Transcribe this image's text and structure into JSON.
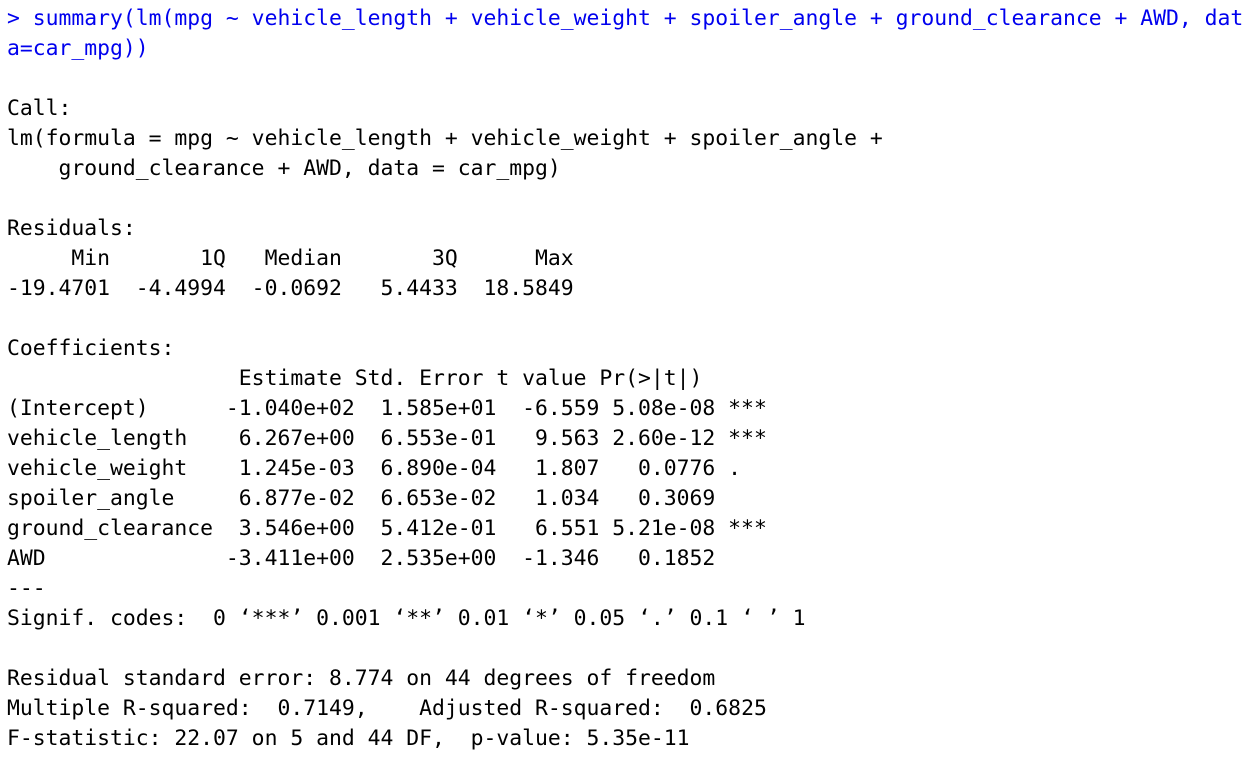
{
  "console": {
    "prompt": ">",
    "command_lines": [
      "> summary(lm(mpg ~ vehicle_length + vehicle_weight + spoiler_angle + ground_clearance + AWD, dat",
      "a=car_mpg))"
    ],
    "command_color": "#0000ee",
    "text_color": "#000000",
    "background": "#ffffff"
  },
  "call": {
    "header": "Call:",
    "lines": [
      "lm(formula = mpg ~ vehicle_length + vehicle_weight + spoiler_angle + ",
      "    ground_clearance + AWD, data = car_mpg)"
    ]
  },
  "residuals": {
    "header": "Residuals:",
    "columns_line": "     Min       1Q   Median       3Q      Max ",
    "values_line": "-19.4701  -4.4994  -0.0692   5.4433  18.5849 ",
    "columns": [
      "Min",
      "1Q",
      "Median",
      "3Q",
      "Max"
    ],
    "values": [
      "-19.4701",
      "-4.4994",
      "-0.0692",
      "5.4433",
      "18.5849"
    ]
  },
  "coefficients": {
    "header": "Coefficients:",
    "columns_line": "                  Estimate Std. Error t value Pr(>|t|)    ",
    "columns": [
      "Estimate",
      "Std. Error",
      "t value",
      "Pr(>|t|)"
    ],
    "rows": [
      {
        "line": "(Intercept)      -1.040e+02  1.585e+01  -6.559 5.08e-08 ***",
        "term": "(Intercept)",
        "estimate": "-1.040e+02",
        "std_error": "1.585e+01",
        "t_value": "-6.559",
        "p_value": "5.08e-08",
        "signif": "***"
      },
      {
        "line": "vehicle_length    6.267e+00  6.553e-01   9.563 2.60e-12 ***",
        "term": "vehicle_length",
        "estimate": "6.267e+00",
        "std_error": "6.553e-01",
        "t_value": "9.563",
        "p_value": "2.60e-12",
        "signif": "***"
      },
      {
        "line": "vehicle_weight    1.245e-03  6.890e-04   1.807   0.0776 .  ",
        "term": "vehicle_weight",
        "estimate": "1.245e-03",
        "std_error": "6.890e-04",
        "t_value": "1.807",
        "p_value": "0.0776",
        "signif": "."
      },
      {
        "line": "spoiler_angle     6.877e-02  6.653e-02   1.034   0.3069    ",
        "term": "spoiler_angle",
        "estimate": "6.877e-02",
        "std_error": "6.653e-02",
        "t_value": "1.034",
        "p_value": "0.3069",
        "signif": ""
      },
      {
        "line": "ground_clearance  3.546e+00  5.412e-01   6.551 5.21e-08 ***",
        "term": "ground_clearance",
        "estimate": "3.546e+00",
        "std_error": "5.412e-01",
        "t_value": "6.551",
        "p_value": "5.21e-08",
        "signif": "***"
      },
      {
        "line": "AWD              -3.411e+00  2.535e+00  -1.346   0.1852    ",
        "term": "AWD",
        "estimate": "-3.411e+00",
        "std_error": "2.535e+00",
        "t_value": "-1.346",
        "p_value": "0.1852",
        "signif": ""
      }
    ],
    "separator": "---",
    "signif_codes": "Signif. codes:  0 ‘***’ 0.001 ‘**’ 0.01 ‘*’ 0.05 ‘.’ 0.1 ‘ ’ 1"
  },
  "fit_stats": {
    "residual_se": "Residual standard error: 8.774 on 44 degrees of freedom",
    "r_squared": "Multiple R-squared:  0.7149,\tAdjusted R-squared:  0.6825 ",
    "f_statistic": "F-statistic: 22.07 on 5 and 44 DF,  p-value: 5.35e-11"
  }
}
